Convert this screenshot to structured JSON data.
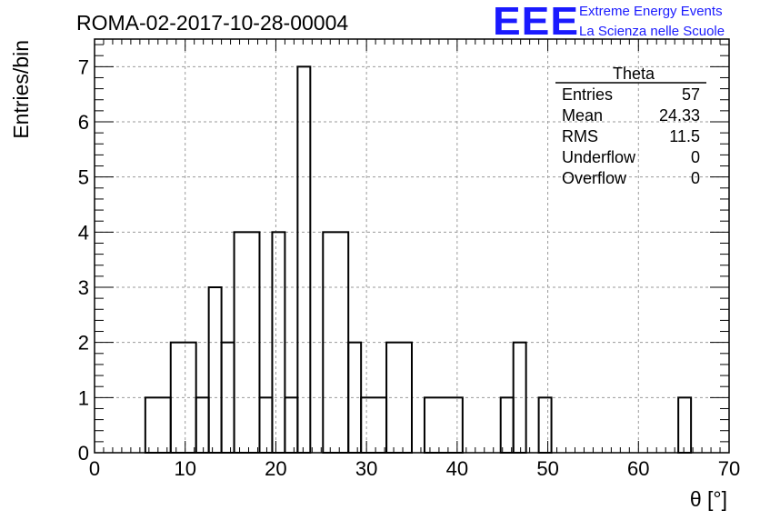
{
  "chart_data": {
    "type": "bar",
    "title": "ROMA-02-2017-10-28-00004",
    "xlabel": "θ [°]",
    "ylabel": "Entries/bin",
    "xlim": [
      0,
      70
    ],
    "ylim": [
      0,
      7.5
    ],
    "bin_width": 1.4,
    "xticks": [
      "0",
      "10",
      "20",
      "30",
      "40",
      "50",
      "60",
      "70"
    ],
    "yticks": [
      "0",
      "1",
      "2",
      "3",
      "4",
      "5",
      "6",
      "7"
    ],
    "grid": true,
    "histogram": [
      {
        "x0": 5.6,
        "x1": 8.4,
        "y": 1
      },
      {
        "x0": 8.4,
        "x1": 11.2,
        "y": 2
      },
      {
        "x0": 11.2,
        "x1": 12.6,
        "y": 1
      },
      {
        "x0": 12.6,
        "x1": 14.0,
        "y": 3
      },
      {
        "x0": 14.0,
        "x1": 15.4,
        "y": 2
      },
      {
        "x0": 15.4,
        "x1": 18.2,
        "y": 4
      },
      {
        "x0": 18.2,
        "x1": 19.6,
        "y": 1
      },
      {
        "x0": 19.6,
        "x1": 21.0,
        "y": 4
      },
      {
        "x0": 21.0,
        "x1": 22.4,
        "y": 1
      },
      {
        "x0": 22.4,
        "x1": 23.8,
        "y": 7
      },
      {
        "x0": 23.8,
        "x1": 25.2,
        "y": 0
      },
      {
        "x0": 25.2,
        "x1": 28.0,
        "y": 4
      },
      {
        "x0": 28.0,
        "x1": 29.4,
        "y": 2
      },
      {
        "x0": 29.4,
        "x1": 32.2,
        "y": 1
      },
      {
        "x0": 32.2,
        "x1": 35.0,
        "y": 2
      },
      {
        "x0": 35.0,
        "x1": 36.4,
        "y": 0
      },
      {
        "x0": 36.4,
        "x1": 40.6,
        "y": 1
      },
      {
        "x0": 40.6,
        "x1": 44.8,
        "y": 0
      },
      {
        "x0": 44.8,
        "x1": 46.2,
        "y": 1
      },
      {
        "x0": 46.2,
        "x1": 47.6,
        "y": 2
      },
      {
        "x0": 47.6,
        "x1": 49.0,
        "y": 0
      },
      {
        "x0": 49.0,
        "x1": 50.4,
        "y": 1
      },
      {
        "x0": 50.4,
        "x1": 64.4,
        "y": 0
      },
      {
        "x0": 64.4,
        "x1": 65.8,
        "y": 1
      }
    ],
    "stats": {
      "title": "Theta",
      "rows": [
        {
          "label": "Entries",
          "value": "57"
        },
        {
          "label": "Mean",
          "value": "24.33"
        },
        {
          "label": "RMS",
          "value": "11.5"
        },
        {
          "label": "Underflow",
          "value": "0"
        },
        {
          "label": "Overflow",
          "value": "0"
        }
      ]
    }
  },
  "logo": {
    "mark": "EEE",
    "line1": "Extreme Energy Events",
    "line2": "La Scienza nelle Scuole",
    "color": "#1a1aff"
  },
  "colors": {
    "line": "#000000",
    "grid": "#9a9a9a"
  }
}
